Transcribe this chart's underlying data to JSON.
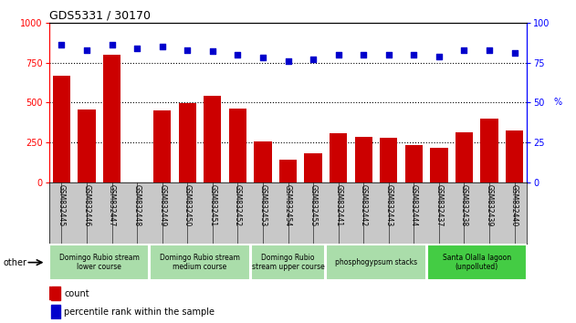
{
  "title": "GDS5331 / 30170",
  "categories": [
    "GSM832445",
    "GSM832446",
    "GSM832447",
    "GSM832448",
    "GSM832449",
    "GSM832450",
    "GSM832451",
    "GSM832452",
    "GSM832453",
    "GSM832454",
    "GSM832455",
    "GSM832441",
    "GSM832442",
    "GSM832443",
    "GSM832444",
    "GSM832437",
    "GSM832438",
    "GSM832439",
    "GSM832440"
  ],
  "counts": [
    670,
    455,
    800,
    0,
    450,
    495,
    545,
    460,
    255,
    145,
    185,
    310,
    285,
    280,
    235,
    215,
    315,
    400,
    325
  ],
  "percentiles": [
    86,
    83,
    86,
    84,
    85,
    83,
    82,
    80,
    78,
    76,
    77,
    80,
    80,
    80,
    80,
    79,
    83,
    83,
    81
  ],
  "bar_color": "#cc0000",
  "dot_color": "#0000cc",
  "ylim_left": [
    0,
    1000
  ],
  "ylim_right": [
    0,
    100
  ],
  "yticks_left": [
    0,
    250,
    500,
    750,
    1000
  ],
  "yticks_right": [
    0,
    25,
    50,
    75,
    100
  ],
  "groups": [
    {
      "label": "Domingo Rubio stream\nlower course",
      "start": 0,
      "end": 4,
      "color": "#aaddaa"
    },
    {
      "label": "Domingo Rubio stream\nmedium course",
      "start": 4,
      "end": 8,
      "color": "#aaddaa"
    },
    {
      "label": "Domingo Rubio\nstream upper course",
      "start": 8,
      "end": 11,
      "color": "#aaddaa"
    },
    {
      "label": "phosphogypsum stacks",
      "start": 11,
      "end": 15,
      "color": "#aaddaa"
    },
    {
      "label": "Santa Olalla lagoon\n(unpolluted)",
      "start": 15,
      "end": 19,
      "color": "#44cc44"
    }
  ],
  "other_label": "other",
  "legend_count_label": "count",
  "legend_pct_label": "percentile rank within the sample",
  "background_color": "#ffffff",
  "tick_area_color": "#c8c8c8"
}
